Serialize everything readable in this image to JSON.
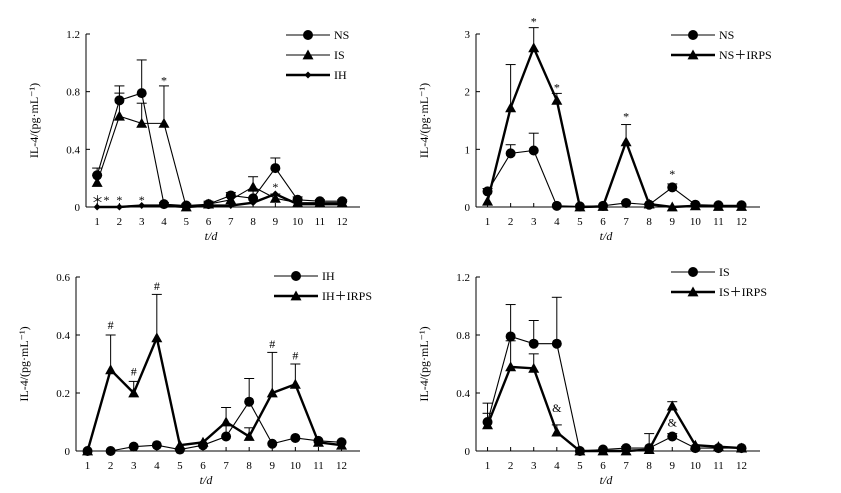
{
  "chart_data": [
    {
      "type": "line",
      "ylabel": "IL-4/(pg·mL⁻¹)",
      "xlabel": "t/d",
      "ylim": [
        0,
        1.2
      ],
      "yticks": [
        "0",
        "0.4",
        "0.8",
        "1.2"
      ],
      "x": [
        1,
        2,
        3,
        4,
        5,
        6,
        7,
        8,
        9,
        10,
        11,
        12
      ],
      "legend_position": "top-right",
      "series": [
        {
          "name": "NS",
          "marker": "circle",
          "bold": false,
          "values": [
            0.22,
            0.74,
            0.79,
            0.02,
            0.01,
            0.02,
            0.08,
            0.06,
            0.27,
            0.05,
            0.04,
            0.04
          ],
          "errors": [
            0.05,
            0.1,
            0.23,
            0.01,
            0.01,
            0.01,
            0.02,
            0.05,
            0.07,
            0.02,
            0.01,
            0.01
          ]
        },
        {
          "name": "IS",
          "marker": "triangle",
          "bold": false,
          "values": [
            0.17,
            0.63,
            0.58,
            0.58,
            0.0,
            0.02,
            0.05,
            0.14,
            0.06,
            0.03,
            0.03,
            0.03
          ],
          "errors": [
            0.05,
            0.16,
            0.14,
            0.26,
            0.02,
            0.02,
            0.02,
            0.07,
            0.03,
            0.02,
            0.01,
            0.01
          ]
        },
        {
          "name": "IH",
          "marker": "diamond",
          "bold": true,
          "values": [
            0.0,
            0.0,
            0.01,
            0.01,
            0.0,
            0.01,
            0.01,
            0.03,
            0.09,
            0.02,
            0.02,
            0.02
          ],
          "errors": [
            0,
            0,
            0,
            0,
            0,
            0,
            0,
            0,
            0,
            0,
            0,
            0
          ]
        }
      ],
      "annotations": [
        {
          "x": 1.15,
          "y": 0.02,
          "text": "＊*"
        },
        {
          "x": 2,
          "y": 0.02,
          "text": "*"
        },
        {
          "x": 3,
          "y": 0.02,
          "text": "*"
        },
        {
          "x": 4,
          "y": 0.85,
          "text": "*"
        },
        {
          "x": 9,
          "y": 0.11,
          "text": "*"
        }
      ]
    },
    {
      "type": "line",
      "ylabel": "IL-4/(pg·mL⁻¹)",
      "xlabel": "t/d",
      "ylim": [
        0,
        3
      ],
      "yticks": [
        "0",
        "1",
        "2",
        "3"
      ],
      "x": [
        1,
        2,
        3,
        4,
        5,
        6,
        7,
        8,
        9,
        10,
        11,
        12
      ],
      "legend_position": "top-right",
      "series": [
        {
          "name": "NS",
          "marker": "circle",
          "bold": false,
          "values": [
            0.27,
            0.93,
            0.98,
            0.02,
            0.01,
            0.02,
            0.07,
            0.04,
            0.34,
            0.04,
            0.03,
            0.03
          ],
          "errors": [
            0.05,
            0.15,
            0.3,
            0,
            0,
            0,
            0.02,
            0.02,
            0.06,
            0.02,
            0,
            0
          ]
        },
        {
          "name": "NS＋IRPS",
          "marker": "triangle",
          "bold": true,
          "values": [
            0.1,
            1.72,
            2.76,
            1.85,
            0.0,
            0.01,
            1.13,
            0.05,
            0.0,
            0.02,
            0.01,
            0.01
          ],
          "errors": [
            0,
            0.75,
            0.35,
            0.12,
            0,
            0,
            0.3,
            0,
            0,
            0,
            0,
            0
          ]
        }
      ],
      "annotations": [
        {
          "x": 3,
          "y": 3.15,
          "text": "*"
        },
        {
          "x": 4,
          "y": 2.0,
          "text": "*"
        },
        {
          "x": 7,
          "y": 1.5,
          "text": "*"
        },
        {
          "x": 9,
          "y": 0.5,
          "text": "*"
        }
      ]
    },
    {
      "type": "line",
      "ylabel": "IL-4/(pg·mL⁻¹)",
      "xlabel": "t/d",
      "ylim": [
        0,
        0.6
      ],
      "yticks": [
        "0",
        "0.2",
        "0.4",
        "0.6"
      ],
      "x": [
        1,
        2,
        3,
        4,
        5,
        6,
        7,
        8,
        9,
        10,
        11,
        12
      ],
      "legend_position": "top-right",
      "series": [
        {
          "name": "IH",
          "marker": "circle",
          "bold": false,
          "values": [
            0.0,
            0.0,
            0.015,
            0.02,
            0.005,
            0.02,
            0.05,
            0.17,
            0.025,
            0.045,
            0.035,
            0.03
          ],
          "errors": [
            0,
            0,
            0,
            0,
            0,
            0,
            0.04,
            0.08,
            0,
            0,
            0,
            0
          ]
        },
        {
          "name": "IH＋IRPS",
          "marker": "triangle",
          "bold": true,
          "values": [
            0.0,
            0.28,
            0.2,
            0.39,
            0.02,
            0.03,
            0.1,
            0.05,
            0.2,
            0.23,
            0.03,
            0.02
          ],
          "errors": [
            0,
            0.12,
            0.04,
            0.15,
            0,
            0,
            0.05,
            0.03,
            0.14,
            0.07,
            0,
            0
          ]
        }
      ],
      "annotations": [
        {
          "x": 2,
          "y": 0.42,
          "text": "#"
        },
        {
          "x": 3,
          "y": 0.26,
          "text": "#"
        },
        {
          "x": 4,
          "y": 0.555,
          "text": "#"
        },
        {
          "x": 9,
          "y": 0.355,
          "text": "#"
        },
        {
          "x": 10,
          "y": 0.315,
          "text": "#"
        }
      ]
    },
    {
      "type": "line",
      "ylabel": "IL-4/(pg·mL⁻¹)",
      "xlabel": "t/d",
      "ylim": [
        0,
        1.2
      ],
      "yticks": [
        "0",
        "0.4",
        "0.8",
        "1.2"
      ],
      "x": [
        1,
        2,
        3,
        4,
        5,
        6,
        7,
        8,
        9,
        10,
        11,
        12
      ],
      "legend_position": "top-right",
      "series": [
        {
          "name": "IS",
          "marker": "circle",
          "bold": false,
          "values": [
            0.2,
            0.79,
            0.74,
            0.74,
            0.0,
            0.01,
            0.02,
            0.02,
            0.1,
            0.02,
            0.02,
            0.02
          ],
          "errors": [
            0.13,
            0.22,
            0.16,
            0.32,
            0,
            0,
            0.01,
            0.1,
            0.02,
            0,
            0,
            0
          ]
        },
        {
          "name": "IS＋IRPS",
          "marker": "triangle",
          "bold": true,
          "values": [
            0.18,
            0.58,
            0.57,
            0.13,
            0.0,
            0.0,
            0.0,
            0.01,
            0.31,
            0.04,
            0.03,
            0.02
          ],
          "errors": [
            0.08,
            0.18,
            0.1,
            0.05,
            0,
            0,
            0,
            0,
            0.03,
            0,
            0,
            0
          ]
        }
      ],
      "annotations": [
        {
          "x": 4,
          "y": 0.27,
          "text": "&"
        },
        {
          "x": 9,
          "y": 0.17,
          "text": "&"
        }
      ]
    }
  ]
}
